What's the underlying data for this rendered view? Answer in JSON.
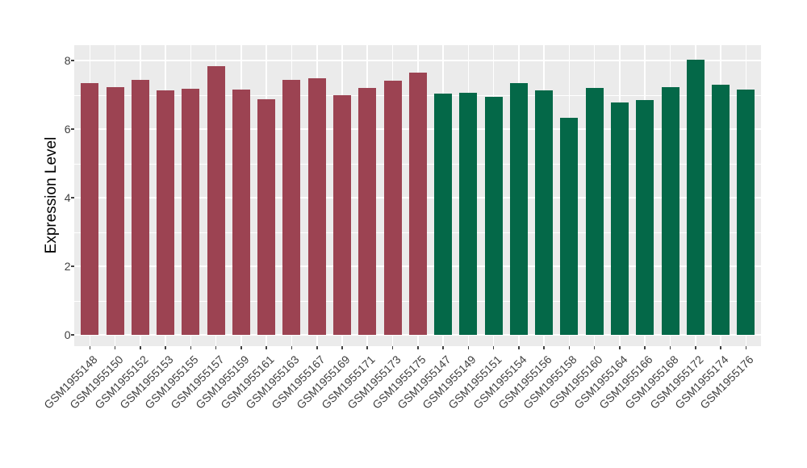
{
  "figure": {
    "background": "#FFFFFF"
  },
  "chart_data": {
    "type": "bar",
    "title": "",
    "xlabel": "",
    "ylabel": "Expression Level",
    "yticks": [
      0,
      2,
      4,
      6,
      8
    ],
    "ylim": [
      0,
      8.45
    ],
    "grid": true,
    "legend": false,
    "panel_background": "#EBEBEB",
    "gridline_color": "#FFFFFF",
    "axis_text_color": "#404040",
    "colors": {
      "red": "#9C4352",
      "green": "#046848"
    },
    "bars": [
      {
        "label": "GSM1955148",
        "value": 7.34,
        "group": "red"
      },
      {
        "label": "GSM1955150",
        "value": 7.23,
        "group": "red"
      },
      {
        "label": "GSM1955152",
        "value": 7.44,
        "group": "red"
      },
      {
        "label": "GSM1955153",
        "value": 7.13,
        "group": "red"
      },
      {
        "label": "GSM1955155",
        "value": 7.18,
        "group": "red"
      },
      {
        "label": "GSM1955157",
        "value": 7.83,
        "group": "red"
      },
      {
        "label": "GSM1955159",
        "value": 7.16,
        "group": "red"
      },
      {
        "label": "GSM1955161",
        "value": 6.88,
        "group": "red"
      },
      {
        "label": "GSM1955163",
        "value": 7.44,
        "group": "red"
      },
      {
        "label": "GSM1955167",
        "value": 7.48,
        "group": "red"
      },
      {
        "label": "GSM1955169",
        "value": 7.0,
        "group": "red"
      },
      {
        "label": "GSM1955171",
        "value": 7.2,
        "group": "red"
      },
      {
        "label": "GSM1955173",
        "value": 7.41,
        "group": "red"
      },
      {
        "label": "GSM1955175",
        "value": 7.65,
        "group": "red"
      },
      {
        "label": "GSM1955147",
        "value": 7.03,
        "group": "green"
      },
      {
        "label": "GSM1955149",
        "value": 7.05,
        "group": "green"
      },
      {
        "label": "GSM1955151",
        "value": 6.93,
        "group": "green"
      },
      {
        "label": "GSM1955154",
        "value": 7.34,
        "group": "green"
      },
      {
        "label": "GSM1955156",
        "value": 7.14,
        "group": "green"
      },
      {
        "label": "GSM1955158",
        "value": 6.32,
        "group": "green"
      },
      {
        "label": "GSM1955160",
        "value": 7.2,
        "group": "green"
      },
      {
        "label": "GSM1955164",
        "value": 6.77,
        "group": "green"
      },
      {
        "label": "GSM1955166",
        "value": 6.85,
        "group": "green"
      },
      {
        "label": "GSM1955168",
        "value": 7.22,
        "group": "green"
      },
      {
        "label": "GSM1955172",
        "value": 8.02,
        "group": "green"
      },
      {
        "label": "GSM1955174",
        "value": 7.3,
        "group": "green"
      },
      {
        "label": "GSM1955176",
        "value": 7.15,
        "group": "green"
      }
    ]
  }
}
